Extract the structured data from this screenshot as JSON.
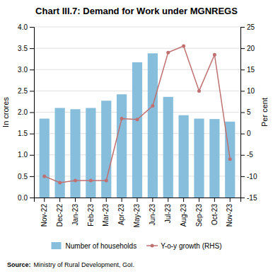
{
  "chart_data": {
    "type": "bar",
    "title": "Chart III.7: Demand for Work under MGNREGS",
    "categories": [
      "Nov-22",
      "Dec-22",
      "Jan-23",
      "Feb-23",
      "Mar-23",
      "Apr-23",
      "May-23",
      "Jun-23",
      "Jul-23",
      "Aug-23",
      "Sep-23",
      "Oct-23",
      "Nov-23"
    ],
    "series": [
      {
        "name": "Number of households",
        "type": "bar",
        "color": "#87BEDC",
        "values": [
          1.85,
          2.1,
          2.07,
          2.1,
          2.27,
          2.42,
          3.17,
          3.38,
          2.36,
          1.93,
          1.85,
          1.84,
          1.78
        ]
      },
      {
        "name": "Y-o-y growth (RHS)",
        "type": "line",
        "color": "#C07070",
        "marker": "circle",
        "axis": "y2",
        "values": [
          -10,
          -11.5,
          -11,
          -11,
          -11,
          3.5,
          3.3,
          6.5,
          19,
          20.5,
          10,
          18.5,
          -6
        ]
      }
    ],
    "ylabel": "In crores",
    "y2label": "Per cent",
    "ylim": [
      0,
      4.0
    ],
    "yticks": [
      {
        "value": 0,
        "label": "0.0"
      },
      0.5,
      {
        "value": 1,
        "label": "1.0"
      },
      1.5,
      {
        "value": 2,
        "label": "2.0"
      },
      2.5,
      {
        "value": 3,
        "label": "3.0"
      },
      3.5,
      {
        "value": 4,
        "label": "4.0"
      }
    ],
    "y2lim": [
      -15,
      25
    ],
    "y2ticks": [
      -15,
      -10,
      -5,
      0,
      5,
      10,
      15,
      20,
      25
    ],
    "grid": true,
    "legend": "bottom",
    "source_label": "Source:",
    "source": "Ministry of Rural Development, GoI."
  }
}
